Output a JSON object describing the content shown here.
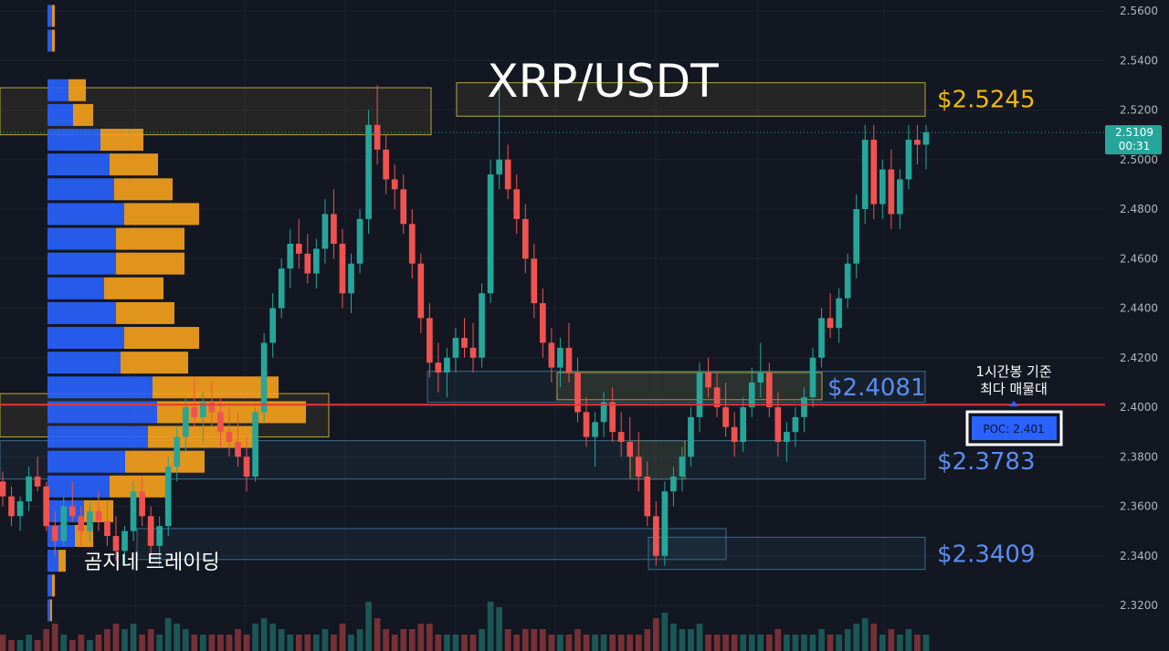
{
  "chart_data": {
    "type": "candlestick",
    "title": "XRP/USDT",
    "watermark": "곰지네 트레이딩",
    "y_ticks": [
      "2.5600",
      "2.5400",
      "2.5200",
      "2.5000",
      "2.4800",
      "2.4600",
      "2.4400",
      "2.4200",
      "2.4000",
      "2.3800",
      "2.3600",
      "2.3400",
      "2.3200"
    ],
    "ylim": [
      2.314,
      2.565
    ],
    "current_price": {
      "value": "2.5109",
      "countdown": "00:31",
      "color": "#26a69a"
    },
    "levels": [
      {
        "label": "$2.5245",
        "value": 2.5245,
        "color": "#f0b90b"
      },
      {
        "label": "$2.4081",
        "value": 2.4081,
        "color": "#5b8def"
      },
      {
        "label": "$2.3783",
        "value": 2.3783,
        "color": "#5b8def"
      },
      {
        "label": "$2.3409",
        "value": 2.3409,
        "color": "#5b8def"
      }
    ],
    "poc": {
      "value": 2.401,
      "label": "POC: 2.401",
      "note_line1": "1시간봉 기준",
      "note_line2": "최다 매물대",
      "color": "#e53935"
    },
    "colors": {
      "up": "#26a69a",
      "down": "#ef5350",
      "vp_blue": "#2962ff",
      "vp_orange": "#f7a21b"
    },
    "volume_profile": [
      {
        "price": 2.558,
        "buy": 0.05,
        "sell": 0.03
      },
      {
        "price": 2.548,
        "buy": 0.05,
        "sell": 0.03
      },
      {
        "price": 2.528,
        "buy": 0.23,
        "sell": 0.19
      },
      {
        "price": 2.518,
        "buy": 0.28,
        "sell": 0.22
      },
      {
        "price": 2.508,
        "buy": 0.58,
        "sell": 0.47
      },
      {
        "price": 2.498,
        "buy": 0.68,
        "sell": 0.53
      },
      {
        "price": 2.488,
        "buy": 0.73,
        "sell": 0.64
      },
      {
        "price": 2.478,
        "buy": 0.84,
        "sell": 0.82
      },
      {
        "price": 2.468,
        "buy": 0.75,
        "sell": 0.75
      },
      {
        "price": 2.458,
        "buy": 0.75,
        "sell": 0.75
      },
      {
        "price": 2.448,
        "buy": 0.62,
        "sell": 0.65
      },
      {
        "price": 2.438,
        "buy": 0.75,
        "sell": 0.64
      },
      {
        "price": 2.428,
        "buy": 0.84,
        "sell": 0.82
      },
      {
        "price": 2.418,
        "buy": 0.8,
        "sell": 0.74
      },
      {
        "price": 2.408,
        "buy": 1.15,
        "sell": 1.38
      },
      {
        "price": 2.398,
        "buy": 1.2,
        "sell": 1.63
      },
      {
        "price": 2.388,
        "buy": 1.1,
        "sell": 1.2
      },
      {
        "price": 2.378,
        "buy": 0.85,
        "sell": 0.87
      },
      {
        "price": 2.368,
        "buy": 0.68,
        "sell": 0.65
      },
      {
        "price": 2.358,
        "buy": 0.4,
        "sell": 0.32
      },
      {
        "price": 2.348,
        "buy": 0.3,
        "sell": 0.2
      },
      {
        "price": 2.338,
        "buy": 0.12,
        "sell": 0.08
      },
      {
        "price": 2.328,
        "buy": 0.05,
        "sell": 0.03
      },
      {
        "price": 2.318,
        "buy": 0.03,
        "sell": 0.02
      }
    ],
    "candles": [
      [
        2.37,
        2.374,
        2.36,
        2.364
      ],
      [
        2.364,
        2.368,
        2.352,
        2.356
      ],
      [
        2.356,
        2.364,
        2.35,
        2.362
      ],
      [
        2.362,
        2.376,
        2.358,
        2.372
      ],
      [
        2.372,
        2.38,
        2.366,
        2.368
      ],
      [
        2.368,
        2.37,
        2.35,
        2.352
      ],
      [
        2.352,
        2.358,
        2.34,
        2.346
      ],
      [
        2.346,
        2.364,
        2.344,
        2.36
      ],
      [
        2.36,
        2.37,
        2.354,
        2.356
      ],
      [
        2.356,
        2.36,
        2.344,
        2.35
      ],
      [
        2.35,
        2.362,
        2.346,
        2.358
      ],
      [
        2.358,
        2.366,
        2.35,
        2.354
      ],
      [
        2.354,
        2.362,
        2.344,
        2.348
      ],
      [
        2.348,
        2.356,
        2.338,
        2.342
      ],
      [
        2.342,
        2.352,
        2.336,
        2.35
      ],
      [
        2.35,
        2.37,
        2.346,
        2.366
      ],
      [
        2.366,
        2.372,
        2.352,
        2.356
      ],
      [
        2.356,
        2.36,
        2.34,
        2.344
      ],
      [
        2.344,
        2.356,
        2.336,
        2.352
      ],
      [
        2.352,
        2.38,
        2.348,
        2.376
      ],
      [
        2.376,
        2.392,
        2.37,
        2.388
      ],
      [
        2.388,
        2.404,
        2.382,
        2.4
      ],
      [
        2.4,
        2.412,
        2.392,
        2.396
      ],
      [
        2.396,
        2.406,
        2.386,
        2.402
      ],
      [
        2.402,
        2.41,
        2.392,
        2.398
      ],
      [
        2.398,
        2.404,
        2.384,
        2.39
      ],
      [
        2.39,
        2.4,
        2.38,
        2.386
      ],
      [
        2.386,
        2.398,
        2.376,
        2.38
      ],
      [
        2.38,
        2.388,
        2.366,
        2.372
      ],
      [
        2.372,
        2.4,
        2.37,
        2.398
      ],
      [
        2.398,
        2.43,
        2.394,
        2.426
      ],
      [
        2.426,
        2.446,
        2.42,
        2.44
      ],
      [
        2.44,
        2.46,
        2.436,
        2.456
      ],
      [
        2.456,
        2.472,
        2.448,
        2.466
      ],
      [
        2.466,
        2.476,
        2.456,
        2.462
      ],
      [
        2.462,
        2.47,
        2.45,
        2.454
      ],
      [
        2.454,
        2.468,
        2.448,
        2.464
      ],
      [
        2.464,
        2.484,
        2.458,
        2.478
      ],
      [
        2.478,
        2.488,
        2.46,
        2.466
      ],
      [
        2.466,
        2.472,
        2.44,
        2.446
      ],
      [
        2.446,
        2.462,
        2.438,
        2.458
      ],
      [
        2.458,
        2.48,
        2.454,
        2.476
      ],
      [
        2.476,
        2.52,
        2.47,
        2.514
      ],
      [
        2.514,
        2.53,
        2.498,
        2.504
      ],
      [
        2.504,
        2.51,
        2.486,
        2.492
      ],
      [
        2.492,
        2.498,
        2.48,
        2.488
      ],
      [
        2.488,
        2.494,
        2.47,
        2.474
      ],
      [
        2.474,
        2.48,
        2.452,
        2.458
      ],
      [
        2.458,
        2.462,
        2.43,
        2.436
      ],
      [
        2.436,
        2.442,
        2.412,
        2.418
      ],
      [
        2.418,
        2.426,
        2.406,
        2.414
      ],
      [
        2.414,
        2.424,
        2.404,
        2.42
      ],
      [
        2.42,
        2.432,
        2.414,
        2.428
      ],
      [
        2.428,
        2.436,
        2.42,
        2.424
      ],
      [
        2.424,
        2.434,
        2.414,
        2.42
      ],
      [
        2.42,
        2.45,
        2.416,
        2.446
      ],
      [
        2.446,
        2.5,
        2.442,
        2.494
      ],
      [
        2.494,
        2.53,
        2.488,
        2.5
      ],
      [
        2.5,
        2.506,
        2.484,
        2.488
      ],
      [
        2.488,
        2.494,
        2.47,
        2.476
      ],
      [
        2.476,
        2.482,
        2.454,
        2.46
      ],
      [
        2.46,
        2.466,
        2.436,
        2.442
      ],
      [
        2.442,
        2.448,
        2.42,
        2.426
      ],
      [
        2.426,
        2.432,
        2.41,
        2.416
      ],
      [
        2.416,
        2.428,
        2.408,
        2.424
      ],
      [
        2.424,
        2.434,
        2.41,
        2.414
      ],
      [
        2.414,
        2.42,
        2.394,
        2.398
      ],
      [
        2.398,
        2.404,
        2.384,
        2.388
      ],
      [
        2.388,
        2.398,
        2.376,
        2.394
      ],
      [
        2.394,
        2.406,
        2.388,
        2.402
      ],
      [
        2.402,
        2.408,
        2.386,
        2.39
      ],
      [
        2.39,
        2.398,
        2.38,
        2.386
      ],
      [
        2.386,
        2.396,
        2.374,
        2.38
      ],
      [
        2.38,
        2.39,
        2.366,
        2.372
      ],
      [
        2.372,
        2.378,
        2.352,
        2.356
      ],
      [
        2.356,
        2.362,
        2.336,
        2.34
      ],
      [
        2.34,
        2.37,
        2.336,
        2.366
      ],
      [
        2.366,
        2.376,
        2.36,
        2.372
      ],
      [
        2.372,
        2.384,
        2.366,
        2.38
      ],
      [
        2.38,
        2.4,
        2.376,
        2.396
      ],
      [
        2.396,
        2.418,
        2.39,
        2.414
      ],
      [
        2.414,
        2.42,
        2.404,
        2.408
      ],
      [
        2.408,
        2.414,
        2.396,
        2.4
      ],
      [
        2.4,
        2.41,
        2.388,
        2.392
      ],
      [
        2.392,
        2.398,
        2.38,
        2.386
      ],
      [
        2.386,
        2.404,
        2.382,
        2.4
      ],
      [
        2.4,
        2.416,
        2.396,
        2.41
      ],
      [
        2.41,
        2.426,
        2.404,
        2.414
      ],
      [
        2.414,
        2.418,
        2.396,
        2.4
      ],
      [
        2.4,
        2.406,
        2.38,
        2.386
      ],
      [
        2.386,
        2.394,
        2.378,
        2.39
      ],
      [
        2.39,
        2.4,
        2.384,
        2.396
      ],
      [
        2.396,
        2.408,
        2.39,
        2.404
      ],
      [
        2.404,
        2.424,
        2.4,
        2.42
      ],
      [
        2.42,
        2.44,
        2.416,
        2.436
      ],
      [
        2.436,
        2.446,
        2.428,
        2.432
      ],
      [
        2.432,
        2.448,
        2.426,
        2.444
      ],
      [
        2.444,
        2.462,
        2.44,
        2.458
      ],
      [
        2.458,
        2.486,
        2.452,
        2.48
      ],
      [
        2.48,
        2.514,
        2.474,
        2.508
      ],
      [
        2.508,
        2.514,
        2.476,
        2.482
      ],
      [
        2.482,
        2.5,
        2.476,
        2.496
      ],
      [
        2.496,
        2.504,
        2.472,
        2.478
      ],
      [
        2.478,
        2.496,
        2.472,
        2.492
      ],
      [
        2.492,
        2.514,
        2.488,
        2.508
      ],
      [
        2.508,
        2.514,
        2.498,
        2.506
      ],
      [
        2.506,
        2.514,
        2.496,
        2.511
      ]
    ],
    "volumes": [
      0.3,
      0.2,
      0.2,
      0.3,
      0.2,
      0.4,
      0.5,
      0.3,
      0.2,
      0.3,
      0.2,
      0.3,
      0.4,
      0.5,
      0.4,
      0.5,
      0.3,
      0.4,
      0.3,
      0.6,
      0.5,
      0.4,
      0.3,
      0.3,
      0.3,
      0.3,
      0.3,
      0.4,
      0.3,
      0.5,
      0.6,
      0.5,
      0.4,
      0.3,
      0.3,
      0.3,
      0.3,
      0.4,
      0.3,
      0.5,
      0.3,
      0.4,
      0.9,
      0.6,
      0.4,
      0.3,
      0.4,
      0.4,
      0.5,
      0.5,
      0.3,
      0.3,
      0.3,
      0.3,
      0.3,
      0.4,
      0.9,
      0.8,
      0.4,
      0.3,
      0.4,
      0.4,
      0.4,
      0.3,
      0.3,
      0.3,
      0.4,
      0.3,
      0.3,
      0.3,
      0.3,
      0.3,
      0.3,
      0.3,
      0.4,
      0.6,
      0.7,
      0.5,
      0.4,
      0.4,
      0.5,
      0.3,
      0.3,
      0.3,
      0.3,
      0.3,
      0.3,
      0.3,
      0.3,
      0.4,
      0.3,
      0.3,
      0.3,
      0.3,
      0.4,
      0.3,
      0.3,
      0.4,
      0.5,
      0.6,
      0.5,
      0.3,
      0.4,
      0.3,
      0.4,
      0.3,
      0.3
    ]
  }
}
